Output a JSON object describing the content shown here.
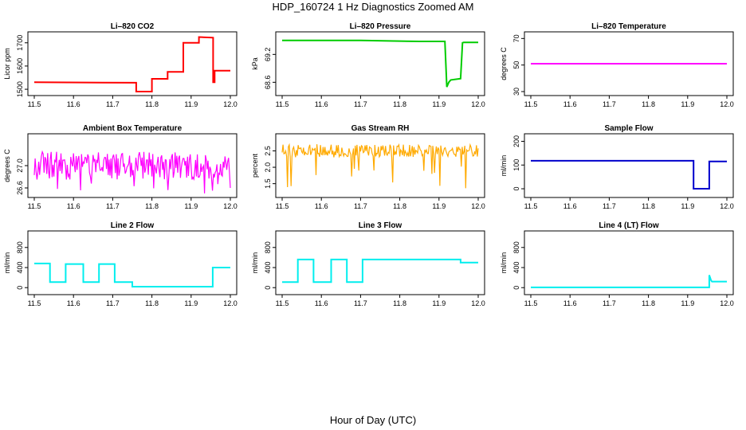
{
  "figure": {
    "title": "HDP_160724  1 Hz Diagnostics Zoomed AM",
    "xlabel": "Hour of Day (UTC)"
  },
  "chart_data": [
    {
      "type": "line",
      "title": "Li–820 CO2",
      "ylabel": "Licor ppm",
      "color": "#ff0000",
      "xlim": [
        11.5,
        12.0
      ],
      "ylim": [
        1490,
        1730
      ],
      "xticks": [
        11.5,
        11.6,
        11.7,
        11.8,
        11.9,
        12.0
      ],
      "yticks": [
        1500,
        1600,
        1700
      ],
      "ytick_labels": [
        "1500",
        "1600",
        "1700"
      ],
      "series": [
        {
          "name": "Li-820 CO2",
          "x": [
            11.5,
            11.76,
            11.76,
            11.8,
            11.8,
            11.84,
            11.84,
            11.88,
            11.88,
            11.92,
            11.92,
            11.956,
            11.956,
            11.96,
            11.96,
            12.0
          ],
          "values": [
            1530,
            1528,
            1490,
            1490,
            1545,
            1545,
            1575,
            1575,
            1700,
            1700,
            1725,
            1722,
            1530,
            1530,
            1580,
            1580
          ]
        }
      ]
    },
    {
      "type": "line",
      "title": "Li–820 Pressure",
      "ylabel": "kPa",
      "color": "#00cc00",
      "xlim": [
        11.5,
        12.0
      ],
      "ylim": [
        68.4,
        69.6
      ],
      "xticks": [
        11.5,
        11.6,
        11.7,
        11.8,
        11.9,
        12.0
      ],
      "yticks": [
        68.6,
        69.2
      ],
      "ytick_labels": [
        "68.6",
        "69.2"
      ],
      "series": [
        {
          "name": "Li-820 Pressure",
          "x": [
            11.5,
            11.7,
            11.85,
            11.915,
            11.92,
            11.925,
            11.93,
            11.955,
            11.96,
            11.963,
            12.0
          ],
          "values": [
            69.5,
            69.5,
            69.48,
            69.48,
            68.5,
            68.6,
            68.65,
            68.68,
            69.45,
            69.46,
            69.46
          ]
        }
      ]
    },
    {
      "type": "line",
      "title": "Li–820 Temperature",
      "ylabel": "degrees C",
      "color": "#ff00ff",
      "xlim": [
        11.5,
        12.0
      ],
      "ylim": [
        30,
        72
      ],
      "xticks": [
        11.5,
        11.6,
        11.7,
        11.8,
        11.9,
        12.0
      ],
      "yticks": [
        30,
        50,
        70
      ],
      "ytick_labels": [
        "30",
        "50",
        "70"
      ],
      "series": [
        {
          "name": "Li-820 Temperature",
          "x": [
            11.5,
            12.0
          ],
          "values": [
            51,
            51
          ]
        }
      ]
    },
    {
      "type": "line",
      "title": "Ambient Box Temperature",
      "ylabel": "degrees C",
      "color": "#ff00ff",
      "xlim": [
        11.5,
        12.0
      ],
      "ylim": [
        26.5,
        27.5
      ],
      "xticks": [
        11.5,
        11.6,
        11.7,
        11.8,
        11.9,
        12.0
      ],
      "yticks": [
        26.6,
        27.0
      ],
      "ytick_labels": [
        "26.6",
        "27.0"
      ],
      "series": [
        {
          "name": "Ambient Box Temperature",
          "x": [
            11.5,
            12.0
          ],
          "band": [
            26.75,
            27.25
          ],
          "values": [
            27.0,
            27.0
          ]
        }
      ]
    },
    {
      "type": "line",
      "title": "Gas Stream RH",
      "ylabel": "percent",
      "color": "#ffaa00",
      "xlim": [
        11.5,
        12.0
      ],
      "ylim": [
        1.2,
        2.9
      ],
      "xticks": [
        11.5,
        11.6,
        11.7,
        11.8,
        11.9,
        12.0
      ],
      "yticks": [
        1.5,
        2.0,
        2.5
      ],
      "ytick_labels": [
        "1.5",
        "2.0",
        "2.5"
      ],
      "series": [
        {
          "name": "Gas Stream RH",
          "x": [
            11.5,
            12.0
          ],
          "band": [
            2.3,
            2.7
          ],
          "values": [
            2.5,
            2.5
          ]
        }
      ]
    },
    {
      "type": "line",
      "title": "Sample Flow",
      "ylabel": "ml/min",
      "color": "#0000cc",
      "xlim": [
        11.5,
        12.0
      ],
      "ylim": [
        -20,
        215
      ],
      "xticks": [
        11.5,
        11.6,
        11.7,
        11.8,
        11.9,
        12.0
      ],
      "yticks": [
        0,
        100,
        200
      ],
      "ytick_labels": [
        "0",
        "100",
        "200"
      ],
      "series": [
        {
          "name": "Sample Flow",
          "x": [
            11.5,
            11.915,
            11.915,
            11.955,
            11.955,
            12.0
          ],
          "values": [
            118,
            118,
            0,
            0,
            115,
            115
          ]
        }
      ]
    },
    {
      "type": "line",
      "title": "Line 2 Flow",
      "ylabel": "ml/min",
      "color": "#00eeee",
      "xlim": [
        11.5,
        12.0
      ],
      "ylim": [
        -60,
        1050
      ],
      "xticks": [
        11.5,
        11.6,
        11.7,
        11.8,
        11.9,
        12.0
      ],
      "yticks": [
        0,
        400,
        800
      ],
      "ytick_labels": [
        "0",
        "400",
        "800"
      ],
      "series": [
        {
          "name": "Line 2 Flow",
          "x": [
            11.5,
            11.54,
            11.54,
            11.58,
            11.58,
            11.625,
            11.625,
            11.665,
            11.665,
            11.705,
            11.705,
            11.75,
            11.75,
            11.955,
            11.955,
            12.0
          ],
          "values": [
            480,
            480,
            110,
            110,
            470,
            470,
            110,
            110,
            470,
            470,
            110,
            110,
            20,
            20,
            400,
            400
          ]
        }
      ]
    },
    {
      "type": "line",
      "title": "Line 3 Flow",
      "ylabel": "ml/min",
      "color": "#00eeee",
      "xlim": [
        11.5,
        12.0
      ],
      "ylim": [
        -60,
        1050
      ],
      "xticks": [
        11.5,
        11.6,
        11.7,
        11.8,
        11.9,
        12.0
      ],
      "yticks": [
        0,
        400,
        800
      ],
      "ytick_labels": [
        "0",
        "400",
        "800"
      ],
      "series": [
        {
          "name": "Line 3 Flow",
          "x": [
            11.5,
            11.54,
            11.54,
            11.58,
            11.58,
            11.625,
            11.625,
            11.665,
            11.665,
            11.705,
            11.705,
            11.955,
            11.955,
            12.0
          ],
          "values": [
            110,
            110,
            560,
            560,
            110,
            110,
            560,
            560,
            110,
            110,
            560,
            560,
            500,
            500
          ]
        }
      ]
    },
    {
      "type": "line",
      "title": "Line 4 (LT) Flow",
      "ylabel": "ml/min",
      "color": "#00eeee",
      "xlim": [
        11.5,
        12.0
      ],
      "ylim": [
        -60,
        1050
      ],
      "xticks": [
        11.5,
        11.6,
        11.7,
        11.8,
        11.9,
        12.0
      ],
      "yticks": [
        0,
        400,
        800
      ],
      "ytick_labels": [
        "0",
        "400",
        "800"
      ],
      "series": [
        {
          "name": "Line 4 (LT) Flow",
          "x": [
            11.5,
            11.955,
            11.955,
            11.96,
            11.962,
            12.0
          ],
          "values": [
            5,
            5,
            250,
            140,
            120,
            120
          ]
        }
      ]
    }
  ]
}
